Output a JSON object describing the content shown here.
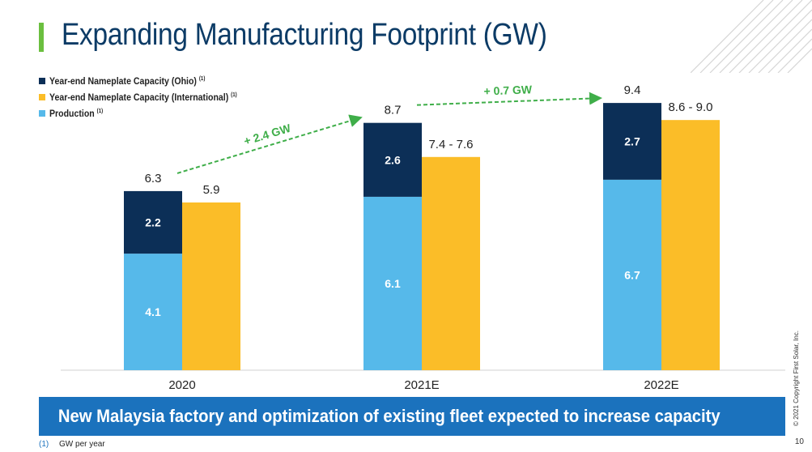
{
  "slide": {
    "title": "Expanding Manufacturing Footprint (GW)",
    "banner": "New Malaysia factory and optimization of existing fleet expected to increase capacity",
    "footnote_marker": "(1)",
    "footnote_text": "GW per year",
    "copyright": "© 2021 Copyright First Solar, Inc.",
    "page_number": "10"
  },
  "colors": {
    "ohio": "#0c2f57",
    "international": "#fbbd28",
    "production": "#56b9ea",
    "accent_green": "#6bbf3f",
    "arrow_green": "#3fae49",
    "banner_blue": "#1b72bd",
    "title_blue": "#0c3b66"
  },
  "chart_data": {
    "type": "bar",
    "categories": [
      "2020",
      "2021E",
      "2022E"
    ],
    "legend": [
      {
        "name": "Year-end Nameplate Capacity (Ohio)",
        "sup": "(1)",
        "color_key": "ohio"
      },
      {
        "name": "Year-end Nameplate Capacity (International)",
        "sup": "(1)",
        "color_key": "international"
      },
      {
        "name": "Production",
        "sup": "(1)",
        "color_key": "production"
      }
    ],
    "stacked_bar": {
      "production_values": [
        4.1,
        6.1,
        6.7
      ],
      "ohio_values": [
        2.2,
        2.6,
        2.7
      ],
      "production_labels": [
        "4.1",
        "6.1",
        "6.7"
      ],
      "ohio_labels": [
        "2.2",
        "2.6",
        "2.7"
      ],
      "total_labels": [
        "6.3",
        "8.7",
        "9.4"
      ]
    },
    "international_bar": {
      "values": [
        5.9,
        7.5,
        8.8
      ],
      "labels": [
        "5.9",
        "7.4 - 7.6",
        "8.6 - 9.0"
      ]
    },
    "annotations": [
      {
        "text": "+ 2.4 GW",
        "from": 0,
        "to": 1
      },
      {
        "text": "+ 0.7 GW",
        "from": 1,
        "to": 2
      }
    ],
    "ylim": [
      0,
      10.6
    ],
    "grid": false,
    "legend_position": "top-left"
  }
}
